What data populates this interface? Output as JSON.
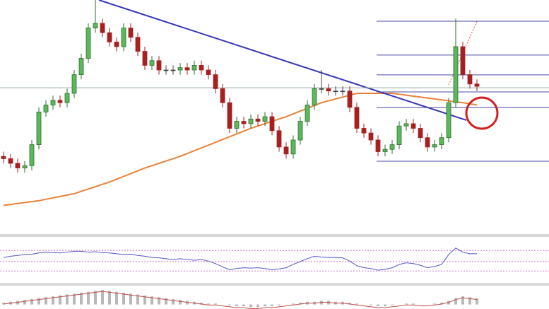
{
  "chart_data": [
    {
      "type": "candlestick",
      "ylim": [
        0,
        100
      ],
      "up_color": "#5cb85c",
      "down_color": "#a52020",
      "open": [
        33,
        32,
        30,
        28,
        29,
        38,
        52,
        55,
        57,
        56,
        60,
        68,
        75,
        88,
        90,
        86,
        82,
        80,
        88,
        84,
        78,
        72,
        74,
        70,
        70,
        70,
        71,
        70,
        72,
        70,
        68,
        62,
        56,
        45,
        48,
        47,
        49,
        48,
        50,
        44,
        37,
        34,
        40,
        48,
        55,
        62,
        62,
        61,
        61,
        61,
        54,
        45,
        43,
        40,
        35,
        36,
        38,
        46,
        47,
        45,
        41,
        37,
        38,
        41,
        56,
        80,
        68,
        64
      ],
      "high": [
        35,
        34,
        32,
        31,
        40,
        54,
        57,
        59,
        59,
        62,
        70,
        77,
        90,
        100,
        92,
        88,
        84,
        90,
        90,
        86,
        80,
        76,
        76,
        72,
        72,
        73,
        73,
        74,
        74,
        72,
        70,
        64,
        58,
        50,
        50,
        51,
        51,
        52,
        52,
        46,
        39,
        42,
        50,
        57,
        64,
        70,
        64,
        63,
        63,
        63,
        56,
        47,
        45,
        42,
        38,
        40,
        48,
        49,
        49,
        47,
        43,
        40,
        43,
        58,
        92,
        82,
        70,
        66
      ],
      "low": [
        30,
        28,
        26,
        26,
        27,
        36,
        50,
        53,
        54,
        54,
        58,
        66,
        73,
        86,
        84,
        80,
        78,
        78,
        82,
        76,
        70,
        70,
        68,
        68,
        68,
        68,
        68,
        68,
        68,
        66,
        60,
        54,
        43,
        43,
        45,
        45,
        46,
        46,
        42,
        35,
        32,
        32,
        38,
        46,
        53,
        60,
        59,
        59,
        59,
        52,
        43,
        41,
        38,
        33,
        33,
        34,
        36,
        44,
        43,
        39,
        35,
        35,
        36,
        39,
        54,
        66,
        62,
        61
      ],
      "close": [
        32,
        30,
        28,
        29,
        38,
        52,
        55,
        57,
        56,
        60,
        68,
        75,
        88,
        90,
        86,
        82,
        80,
        88,
        84,
        78,
        72,
        74,
        70,
        70,
        70,
        71,
        70,
        72,
        70,
        68,
        62,
        56,
        45,
        48,
        47,
        49,
        48,
        50,
        44,
        37,
        34,
        40,
        48,
        55,
        62,
        62,
        61,
        61,
        61,
        54,
        45,
        43,
        40,
        35,
        36,
        38,
        46,
        47,
        45,
        41,
        37,
        38,
        41,
        56,
        80,
        68,
        64,
        63
      ],
      "moving_average": {
        "color": "#e8823a",
        "values": [
          12,
          12.4,
          12.8,
          13.2,
          13.6,
          14,
          14.6,
          15.2,
          15.8,
          16.4,
          17,
          18,
          19,
          20,
          21,
          22,
          23.2,
          24.4,
          25.6,
          26.8,
          28,
          29,
          30,
          31,
          32,
          33,
          34.2,
          35.4,
          36.6,
          37.8,
          39,
          40.2,
          41.4,
          42.6,
          43.8,
          45,
          46,
          47,
          48,
          49,
          50,
          51.2,
          52.4,
          53.6,
          54.8,
          56,
          56.8,
          57.6,
          58.4,
          59.2,
          60,
          60,
          60,
          60,
          60,
          60,
          59.6,
          59.2,
          58.8,
          58.4,
          58,
          57.6,
          57.2,
          56.8,
          56.4,
          56,
          55.5,
          55
        ]
      },
      "trendline": {
        "color": "#3636b8",
        "x": [
          13.5,
          65.5
        ],
        "values": [
          100,
          48.5
        ]
      },
      "fib_levels": {
        "color": "#4a4aa8",
        "start": 52.8,
        "values": [
          90.9,
          76.4,
          67.9,
          60.6,
          53.9,
          30.9
        ]
      },
      "reference_level": {
        "color": "#9aa",
        "values": [
          62.4
        ]
      }
    },
    {
      "type": "line",
      "ylim": [
        0,
        100
      ],
      "levels": [
        72,
        45,
        22
      ],
      "color": "#5555c8",
      "values": [
        55,
        58,
        60,
        62,
        63,
        66,
        68,
        67,
        66,
        68,
        70,
        70,
        68,
        69,
        67,
        66,
        64,
        62,
        63,
        60,
        58,
        55,
        54,
        52,
        50,
        52,
        50,
        48,
        50,
        46,
        40,
        32,
        25,
        28,
        30,
        29,
        30,
        28,
        25,
        27,
        30,
        38,
        45,
        52,
        58,
        56,
        55,
        55,
        54,
        46,
        35,
        30,
        28,
        24,
        26,
        30,
        38,
        42,
        40,
        36,
        30,
        33,
        38,
        62,
        78,
        68,
        64,
        64
      ]
    },
    {
      "type": "bar",
      "ylim": [
        -5,
        20
      ],
      "color": "#b8b8b8",
      "signal_color": "#c0504d",
      "values": [
        2,
        3,
        4,
        5,
        6,
        7,
        8,
        9,
        10,
        11,
        12,
        13,
        14,
        15,
        16,
        15,
        14,
        13,
        12,
        11,
        10,
        9,
        8,
        7,
        6,
        5,
        4,
        3,
        2,
        1,
        1,
        0,
        -1,
        -2,
        -2,
        -3,
        -3,
        -2,
        -2,
        -1,
        0,
        1,
        2,
        3,
        3,
        4,
        4,
        3,
        3,
        2,
        1,
        0,
        -1,
        -2,
        -2,
        -1,
        0,
        1,
        1,
        0,
        0,
        1,
        2,
        4,
        7,
        9,
        8,
        7
      ]
    }
  ]
}
